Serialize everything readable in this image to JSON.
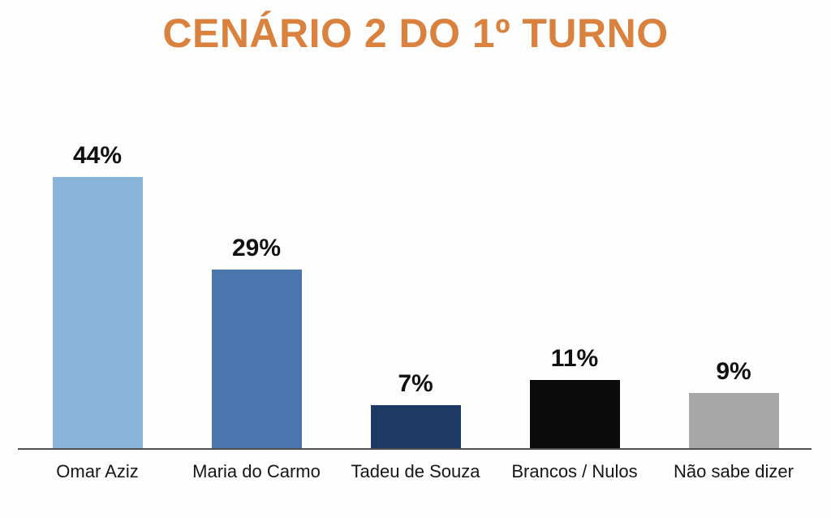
{
  "title": {
    "text": "CENÁRIO 2 DO 1º TURNO",
    "color": "#d9813d"
  },
  "chart_data": {
    "type": "bar",
    "title": "CENÁRIO 2 DO 1º TURNO",
    "categories": [
      "Omar Aziz",
      "Maria do Carmo",
      "Tadeu de Souza",
      "Brancos / Nulos",
      "Não sabe dizer"
    ],
    "values": [
      44,
      29,
      7,
      11,
      9
    ],
    "value_labels": [
      "44%",
      "29%",
      "7%",
      "11%",
      "9%"
    ],
    "bar_colors": [
      "#8ab3d9",
      "#4a77ae",
      "#203a66",
      "#0b0b0b",
      "#a7a7a7"
    ],
    "xlabel": "",
    "ylabel": "",
    "ylim": [
      0,
      47
    ],
    "grid": false,
    "legend": false,
    "value_label_position": "above-bar",
    "axis_line_color": "#4d4d4d",
    "background_color": "#fefefe",
    "title_color": "#d9813d"
  }
}
